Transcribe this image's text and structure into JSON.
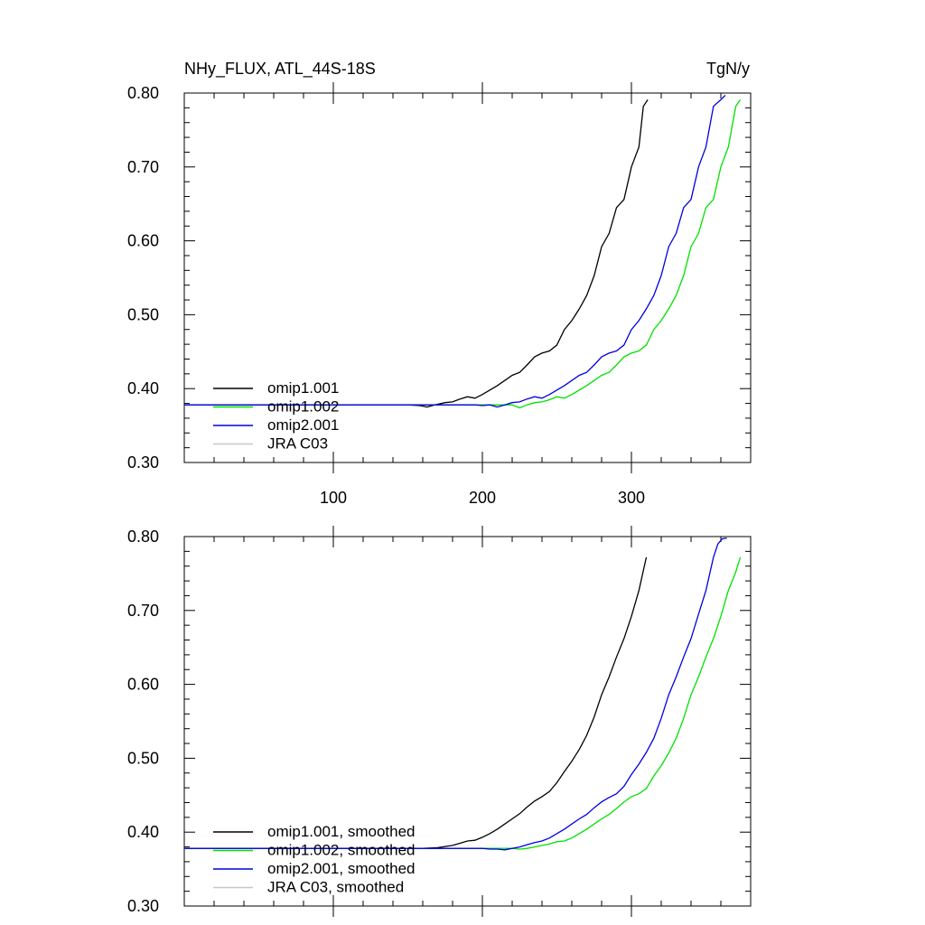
{
  "figure": {
    "title_left": "NHy_FLUX, ATL_44S-18S",
    "title_right": "TgN/y"
  },
  "chart_data": [
    {
      "type": "line",
      "title": "NHy_FLUX, ATL_44S-18S",
      "units": "TgN/y",
      "xlim": [
        0,
        380
      ],
      "ylim": [
        0.3,
        0.8
      ],
      "x_ticks": [
        100,
        200,
        300
      ],
      "x_tick_labels": [
        "100",
        "200",
        "300"
      ],
      "y_ticks": [
        0.3,
        0.4,
        0.5,
        0.6,
        0.7,
        0.8
      ],
      "y_tick_labels": [
        "0.30",
        "0.40",
        "0.50",
        "0.60",
        "0.70",
        "0.80"
      ],
      "grid": false,
      "legend_position": "bottom-left",
      "series": [
        {
          "name": "omip1.001",
          "color": "#000000",
          "x": [
            0,
            150,
            158,
            163,
            168,
            175,
            180,
            185,
            190,
            195,
            200,
            205,
            210,
            215,
            220,
            225,
            230,
            235,
            240,
            245,
            250,
            255,
            260,
            265,
            270,
            275,
            280,
            285,
            290,
            295,
            300,
            305,
            308,
            311
          ],
          "y": [
            0.378,
            0.378,
            0.377,
            0.375,
            0.378,
            0.381,
            0.382,
            0.386,
            0.389,
            0.387,
            0.392,
            0.398,
            0.404,
            0.411,
            0.418,
            0.422,
            0.432,
            0.443,
            0.448,
            0.451,
            0.459,
            0.48,
            0.492,
            0.508,
            0.526,
            0.553,
            0.592,
            0.61,
            0.645,
            0.656,
            0.7,
            0.727,
            0.782,
            0.791
          ]
        },
        {
          "name": "omip1.002",
          "color": "#00e000",
          "x": [
            0,
            215,
            220,
            225,
            230,
            235,
            240,
            245,
            250,
            255,
            260,
            265,
            270,
            275,
            280,
            285,
            290,
            295,
            300,
            305,
            310,
            315,
            320,
            325,
            330,
            335,
            340,
            345,
            350,
            355,
            360,
            365,
            370,
            373
          ],
          "y": [
            0.378,
            0.378,
            0.378,
            0.374,
            0.378,
            0.381,
            0.382,
            0.385,
            0.389,
            0.387,
            0.392,
            0.398,
            0.404,
            0.411,
            0.418,
            0.422,
            0.432,
            0.443,
            0.448,
            0.451,
            0.459,
            0.48,
            0.492,
            0.508,
            0.526,
            0.553,
            0.592,
            0.61,
            0.645,
            0.656,
            0.7,
            0.727,
            0.782,
            0.791
          ]
        },
        {
          "name": "omip2.001",
          "color": "#0000e0",
          "x": [
            0,
            195,
            200,
            205,
            210,
            215,
            220,
            225,
            230,
            235,
            240,
            245,
            250,
            255,
            260,
            265,
            270,
            275,
            280,
            285,
            290,
            295,
            300,
            305,
            310,
            315,
            320,
            325,
            330,
            335,
            340,
            345,
            350,
            355,
            360,
            363
          ],
          "y": [
            0.378,
            0.378,
            0.377,
            0.378,
            0.375,
            0.378,
            0.381,
            0.382,
            0.386,
            0.389,
            0.387,
            0.392,
            0.398,
            0.404,
            0.411,
            0.418,
            0.422,
            0.432,
            0.443,
            0.448,
            0.451,
            0.459,
            0.48,
            0.492,
            0.508,
            0.526,
            0.553,
            0.592,
            0.61,
            0.645,
            0.656,
            0.7,
            0.727,
            0.782,
            0.791,
            0.797
          ]
        },
        {
          "name": "JRA C03",
          "color": "#c8c8c8",
          "x": [],
          "y": []
        }
      ]
    },
    {
      "type": "line",
      "xlim": [
        0,
        380
      ],
      "ylim": [
        0.3,
        0.8
      ],
      "x_ticks": [
        100,
        200,
        300
      ],
      "x_tick_labels": [],
      "y_ticks": [
        0.3,
        0.4,
        0.5,
        0.6,
        0.7,
        0.8
      ],
      "y_tick_labels": [
        "0.30",
        "0.40",
        "0.50",
        "0.60",
        "0.70",
        "0.80"
      ],
      "grid": false,
      "legend_position": "bottom-left",
      "series": [
        {
          "name": "omip1.001, smoothed",
          "color": "#000000",
          "x": [
            0,
            150,
            160,
            170,
            180,
            185,
            190,
            195,
            200,
            205,
            210,
            215,
            220,
            225,
            230,
            235,
            240,
            245,
            250,
            255,
            260,
            265,
            270,
            275,
            280,
            285,
            290,
            295,
            300,
            305,
            310
          ],
          "y": [
            0.378,
            0.378,
            0.378,
            0.379,
            0.382,
            0.385,
            0.388,
            0.389,
            0.393,
            0.398,
            0.404,
            0.411,
            0.418,
            0.425,
            0.434,
            0.442,
            0.448,
            0.455,
            0.467,
            0.482,
            0.496,
            0.512,
            0.531,
            0.556,
            0.586,
            0.61,
            0.637,
            0.662,
            0.692,
            0.727,
            0.772
          ]
        },
        {
          "name": "omip1.002, smoothed",
          "color": "#00e000",
          "x": [
            0,
            210,
            220,
            225,
            230,
            235,
            240,
            245,
            250,
            255,
            260,
            265,
            270,
            275,
            280,
            285,
            290,
            295,
            300,
            305,
            310,
            315,
            320,
            325,
            330,
            335,
            340,
            345,
            350,
            355,
            360,
            365,
            370,
            373
          ],
          "y": [
            0.378,
            0.378,
            0.378,
            0.377,
            0.378,
            0.38,
            0.382,
            0.384,
            0.387,
            0.388,
            0.392,
            0.398,
            0.404,
            0.411,
            0.418,
            0.424,
            0.432,
            0.441,
            0.448,
            0.452,
            0.459,
            0.476,
            0.49,
            0.507,
            0.527,
            0.554,
            0.586,
            0.61,
            0.637,
            0.662,
            0.692,
            0.727,
            0.752,
            0.772
          ]
        },
        {
          "name": "omip2.001, smoothed",
          "color": "#0000e0",
          "x": [
            0,
            200,
            205,
            210,
            215,
            220,
            225,
            230,
            235,
            240,
            245,
            250,
            255,
            260,
            265,
            270,
            275,
            280,
            285,
            290,
            295,
            300,
            305,
            310,
            315,
            320,
            325,
            330,
            335,
            340,
            345,
            350,
            355,
            358,
            361,
            364
          ],
          "y": [
            0.378,
            0.378,
            0.377,
            0.377,
            0.376,
            0.378,
            0.38,
            0.383,
            0.386,
            0.388,
            0.392,
            0.398,
            0.404,
            0.411,
            0.418,
            0.424,
            0.433,
            0.441,
            0.447,
            0.452,
            0.462,
            0.478,
            0.492,
            0.508,
            0.527,
            0.554,
            0.586,
            0.61,
            0.637,
            0.662,
            0.695,
            0.727,
            0.772,
            0.79,
            0.797,
            0.798
          ]
        },
        {
          "name": "JRA C03, smoothed",
          "color": "#c8c8c8",
          "x": [],
          "y": []
        }
      ]
    }
  ]
}
